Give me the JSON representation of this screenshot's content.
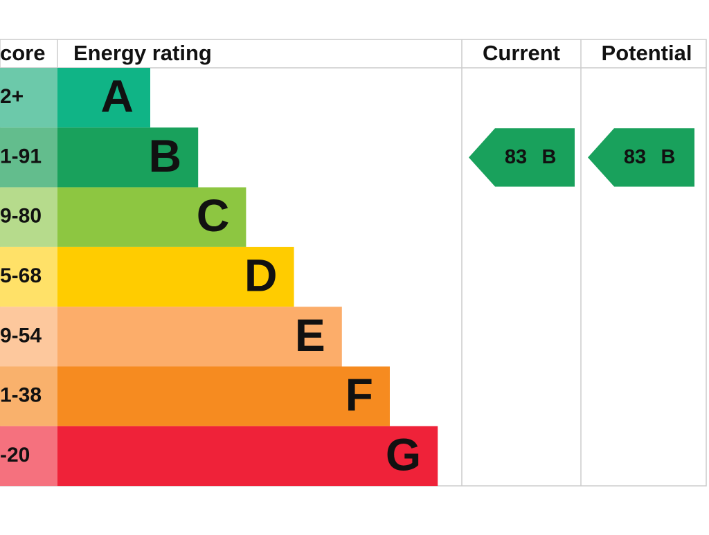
{
  "header": {
    "score": "core",
    "rating": "Energy rating",
    "current": "Current",
    "potential": "Potential"
  },
  "bands": [
    {
      "range": "2+",
      "letter": "A",
      "color": "#10b486",
      "light": "#6cc9aa"
    },
    {
      "range": "1-91",
      "letter": "B",
      "color": "#19a15c",
      "light": "#63bd8d"
    },
    {
      "range": "9-80",
      "letter": "C",
      "color": "#8dc641",
      "light": "#b6db8c"
    },
    {
      "range": "5-68",
      "letter": "D",
      "color": "#ffcc00",
      "light": "#ffe168"
    },
    {
      "range": "9-54",
      "letter": "E",
      "color": "#fcad6a",
      "light": "#fdc89d"
    },
    {
      "range": "1-38",
      "letter": "F",
      "color": "#f68b20",
      "light": "#f9b16c"
    },
    {
      "range": "-20",
      "letter": "G",
      "color": "#ef2239",
      "light": "#f5717e"
    }
  ],
  "current": {
    "score": 83,
    "band": "B"
  },
  "potential": {
    "score": 83,
    "band": "B"
  }
}
